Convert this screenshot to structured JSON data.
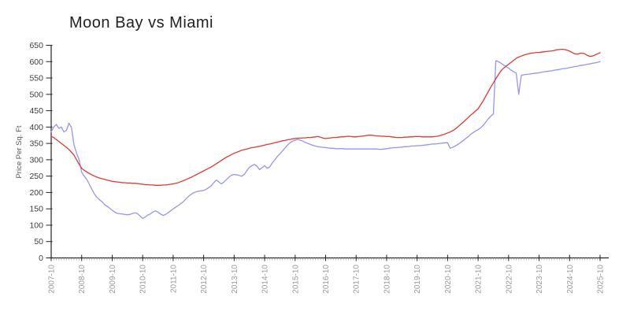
{
  "title": "Moon Bay vs Miami",
  "chart_data": {
    "type": "line",
    "title": "Moon Bay vs Miami",
    "xlabel": "",
    "ylabel": "Price Per Sq. Ft",
    "ylim": [
      0,
      650
    ],
    "y_ticks": [
      0,
      50,
      100,
      150,
      200,
      250,
      300,
      350,
      400,
      450,
      500,
      550,
      600,
      650
    ],
    "x_tick_labels": [
      "2007-10",
      "2008-10",
      "2009-10",
      "2010-10",
      "2011-10",
      "2012-10",
      "2013-10",
      "2014-10",
      "2015-10",
      "2016-10",
      "2017-10",
      "2018-10",
      "2019-10",
      "2020-10",
      "2021-10",
      "2022-10",
      "2023-10",
      "2024-10",
      "2025-10"
    ],
    "x_start": "2007-10",
    "x_end": "2025-10",
    "x_interval": "monthly",
    "minor_ticks": "monthly",
    "grid": false,
    "legend_position": "none",
    "colors": {
      "moon_bay_line": "#9595f0",
      "miami_line": "#e03832",
      "axis": "#222222",
      "y_tick_label": "#3c3c3c",
      "x_tick_label": "#999999",
      "minor_tick": "#aaaaaa",
      "title_text": "#222222"
    },
    "series": [
      {
        "name": "Moon Bay",
        "color": "#9595f0",
        "values": [
          385,
          400,
          408,
          396,
          400,
          385,
          390,
          412,
          398,
          345,
          320,
          300,
          262,
          250,
          240,
          225,
          210,
          195,
          185,
          178,
          172,
          163,
          158,
          152,
          146,
          140,
          136,
          135,
          134,
          133,
          132,
          133,
          136,
          138,
          135,
          128,
          121,
          125,
          131,
          134,
          140,
          144,
          140,
          134,
          130,
          133,
          138,
          144,
          150,
          155,
          160,
          166,
          172,
          180,
          188,
          194,
          199,
          202,
          204,
          205,
          206,
          210,
          215,
          221,
          230,
          238,
          232,
          226,
          232,
          240,
          247,
          253,
          255,
          254,
          252,
          250,
          255,
          267,
          277,
          282,
          286,
          280,
          270,
          276,
          282,
          274,
          278,
          290,
          300,
          310,
          318,
          327,
          336,
          345,
          352,
          357,
          360,
          362,
          360,
          357,
          353,
          350,
          347,
          344,
          342,
          340,
          339,
          338,
          337,
          336,
          335,
          335,
          334,
          334,
          334,
          334,
          333,
          333,
          333,
          333,
          333,
          333,
          333,
          333,
          333,
          333,
          333,
          333,
          333,
          332,
          332,
          333,
          334,
          335,
          336,
          337,
          337,
          338,
          339,
          340,
          340,
          341,
          342,
          342,
          343,
          343,
          344,
          345,
          346,
          347,
          348,
          348,
          349,
          350,
          351,
          352,
          352,
          335,
          338,
          342,
          347,
          352,
          358,
          364,
          370,
          377,
          383,
          388,
          392,
          398,
          405,
          415,
          425,
          433,
          440,
          603,
          600,
          595,
          590,
          585,
          580,
          574,
          569,
          565,
          500,
          558,
          560,
          561,
          562,
          563,
          564,
          565,
          566,
          568,
          569,
          570,
          571,
          572,
          574,
          575,
          576,
          578,
          579,
          580,
          582,
          583,
          585,
          586,
          588,
          589,
          590,
          592,
          593,
          595,
          596,
          598,
          600
        ]
      },
      {
        "name": "Miami",
        "color": "#e03832",
        "values": [
          372,
          368,
          362,
          356,
          350,
          344,
          338,
          331,
          323,
          314,
          300,
          286,
          274,
          268,
          263,
          258,
          254,
          250,
          247,
          244,
          242,
          240,
          238,
          236,
          234,
          233,
          232,
          231,
          230,
          230,
          229,
          229,
          228,
          228,
          227,
          226,
          225,
          224,
          224,
          223,
          223,
          222,
          222,
          222,
          223,
          223,
          224,
          225,
          226,
          228,
          230,
          233,
          236,
          239,
          243,
          246,
          250,
          254,
          258,
          262,
          266,
          270,
          274,
          278,
          283,
          288,
          293,
          298,
          303,
          308,
          312,
          316,
          320,
          323,
          326,
          329,
          331,
          333,
          335,
          337,
          338,
          340,
          341,
          343,
          345,
          347,
          348,
          350,
          352,
          354,
          356,
          358,
          359,
          361,
          362,
          364,
          365,
          366,
          366,
          367,
          367,
          368,
          368,
          369,
          370,
          371,
          369,
          366,
          365,
          366,
          367,
          368,
          368,
          369,
          370,
          370,
          371,
          372,
          371,
          370,
          370,
          371,
          372,
          373,
          374,
          375,
          375,
          374,
          373,
          373,
          372,
          372,
          371,
          371,
          370,
          369,
          368,
          368,
          368,
          369,
          369,
          370,
          370,
          371,
          371,
          371,
          370,
          370,
          370,
          370,
          370,
          371,
          372,
          374,
          376,
          379,
          382,
          385,
          389,
          394,
          400,
          407,
          414,
          421,
          428,
          436,
          442,
          449,
          456,
          468,
          480,
          494,
          508,
          522,
          535,
          548,
          560,
          572,
          580,
          586,
          592,
          598,
          604,
          610,
          614,
          617,
          620,
          622,
          624,
          626,
          627,
          628,
          628,
          629,
          630,
          631,
          632,
          633,
          634,
          636,
          637,
          638,
          637,
          635,
          632,
          628,
          624,
          623,
          625,
          626,
          624,
          619,
          616,
          617,
          620,
          624,
          627
        ]
      }
    ]
  }
}
